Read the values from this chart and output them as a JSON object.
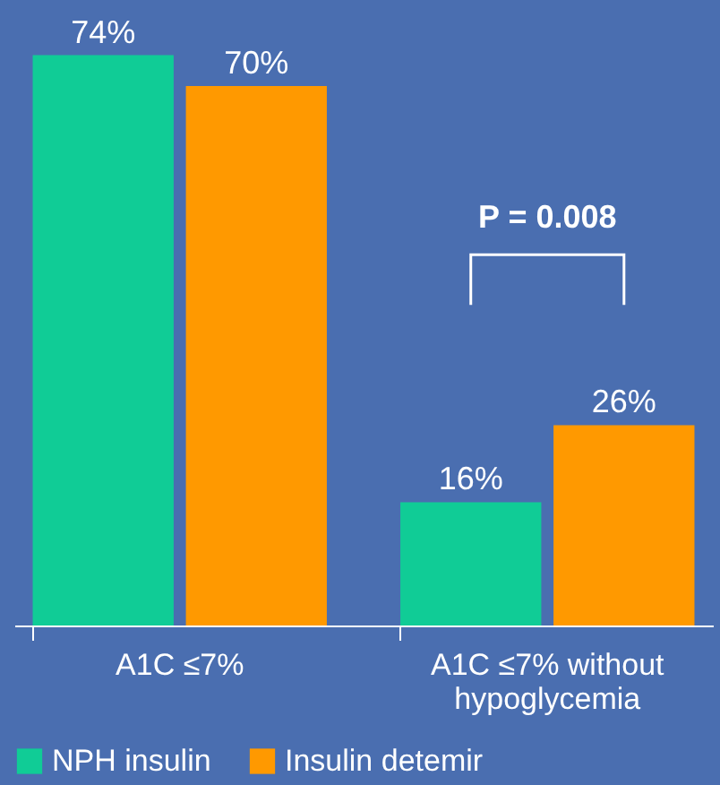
{
  "chart_data": {
    "type": "bar",
    "categories": [
      "A1C ≤7%",
      "A1C ≤7% without hypoglycemia"
    ],
    "series": [
      {
        "name": "NPH insulin",
        "color": "#10cc96",
        "values": [
          74,
          16
        ],
        "value_labels": [
          "74%",
          "16%"
        ]
      },
      {
        "name": "Insulin detemir",
        "color": "#ff9900",
        "values": [
          70,
          26
        ],
        "value_labels": [
          "70%",
          "26%"
        ]
      }
    ],
    "legend": "bottom",
    "grid": false,
    "annotations": [
      "P = 0.008"
    ]
  }
}
